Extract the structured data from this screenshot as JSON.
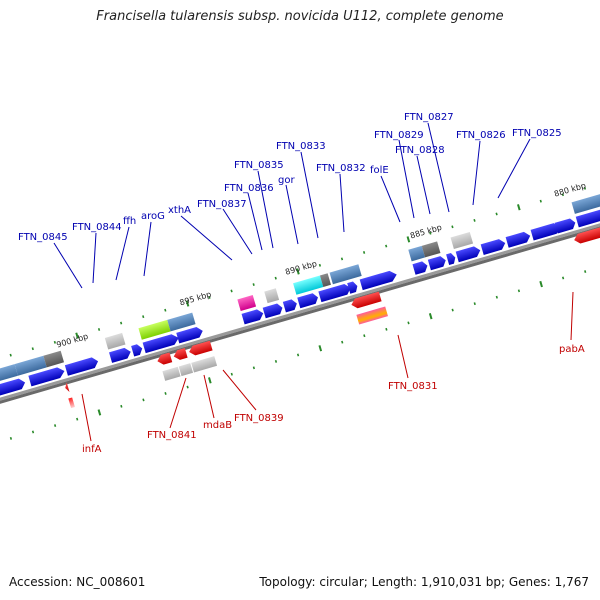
{
  "title": "Francisella tularensis subsp. novicida U112, complete genome",
  "footer": {
    "accession": "Accession: NC_008601",
    "summary": "Topology: circular; Length: 1,910,031 bp; Genes: 1,767"
  },
  "scale_labels": [
    "900 kbp",
    "895 kbp",
    "890 kbp",
    "885 kbp",
    "880 kbp"
  ],
  "forward_gene_labels": [
    "FTN_0845",
    "FTN_0844",
    "ffh",
    "aroG",
    "xthA",
    "FTN_0837",
    "FTN_0836",
    "FTN_0835",
    "gor",
    "FTN_0833",
    "FTN_0832",
    "folE",
    "FTN_0829",
    "FTN_0828",
    "FTN_0827",
    "FTN_0826",
    "FTN_0825"
  ],
  "reverse_gene_labels": [
    "infA",
    "FTN_0841",
    "mdaB",
    "FTN_0839",
    "FTN_0831",
    "pabA"
  ],
  "colors": {
    "forward_label": "#0000b0",
    "reverse_label": "#c00000",
    "forward_cds": "#0000ee",
    "reverse_cds": "#ee0000",
    "backbone": "#808080",
    "tick": "#2a8a2a"
  }
}
